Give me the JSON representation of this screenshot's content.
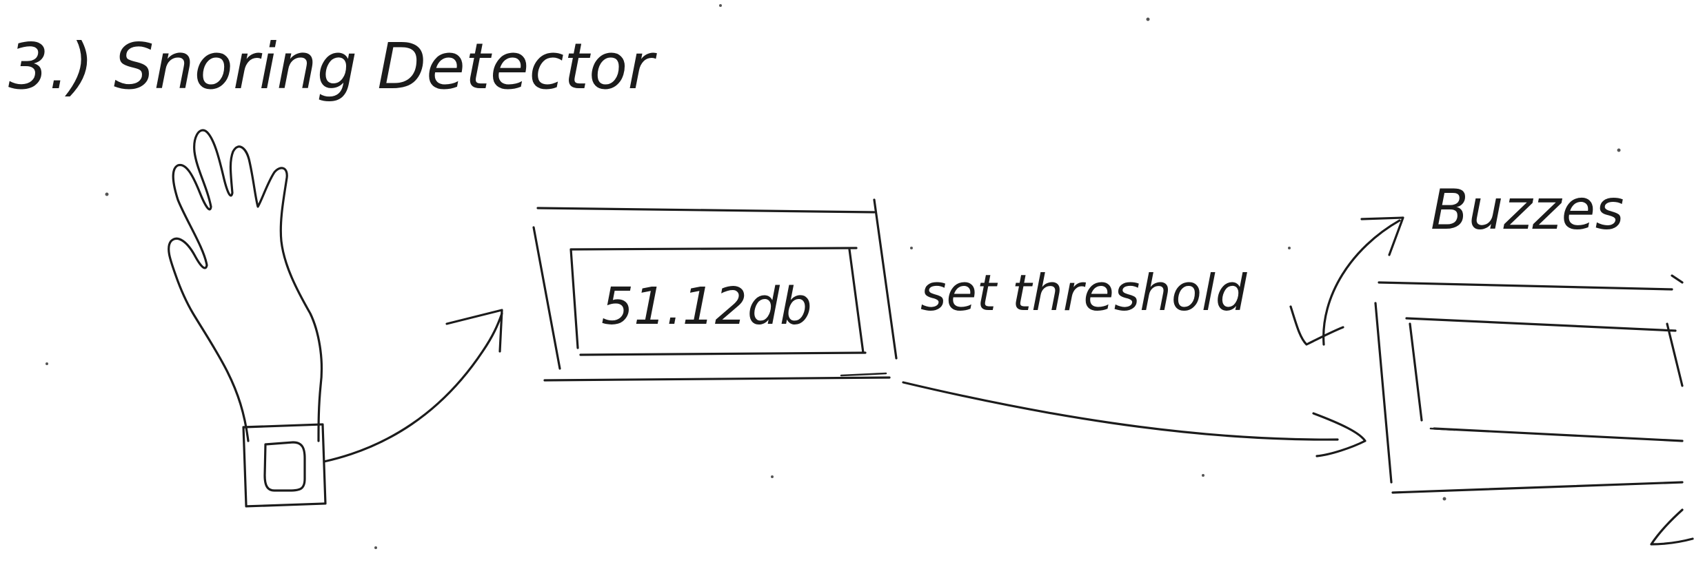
{
  "diagram": {
    "title": "3.) Snoring Detector",
    "display_reading": "51.12db",
    "threshold_label": "set threshold",
    "buzzer_label": "Buzzes"
  },
  "colors": {
    "ink": "#1b1b1b",
    "paper": "#ffffff"
  }
}
